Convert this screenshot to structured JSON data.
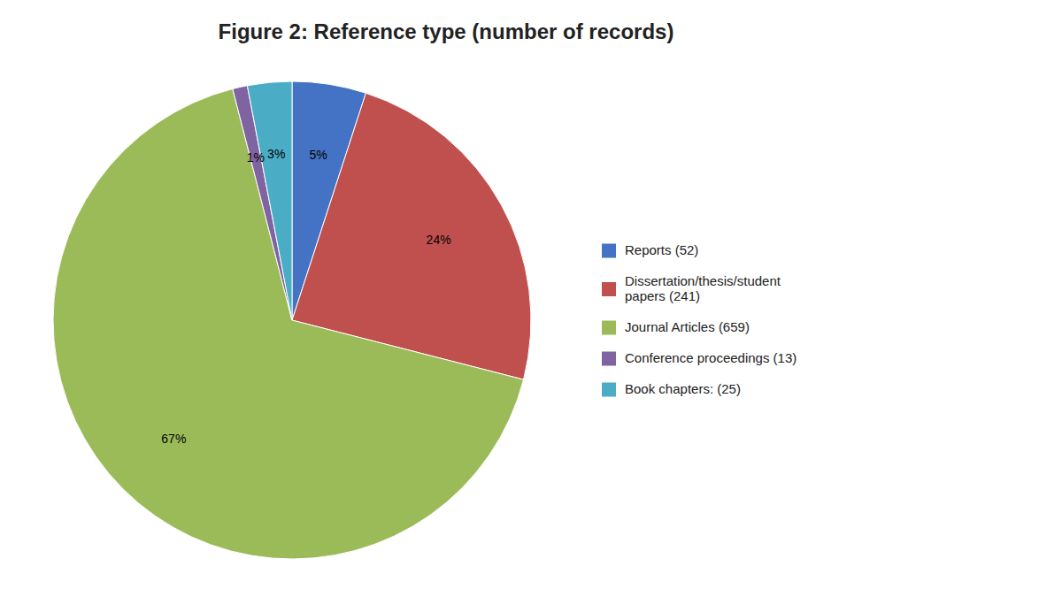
{
  "chart_data": {
    "type": "pie",
    "title": "Figure 2: Reference type (number of records)",
    "categories": [
      "Reports (52)",
      "Dissertation/thesis/student\npapers (241)",
      "Journal Articles (659)",
      "Conference proceedings (13)",
      "Book chapters: (25)"
    ],
    "values": [
      5,
      24,
      67,
      1,
      3
    ],
    "value_labels": [
      "5%",
      "24%",
      "67%",
      "1%",
      "3%"
    ],
    "colors": [
      "#4472C4",
      "#C0504D",
      "#9BBB59",
      "#8064A2",
      "#4BACC6"
    ],
    "data_labels": true,
    "legend": "right"
  }
}
